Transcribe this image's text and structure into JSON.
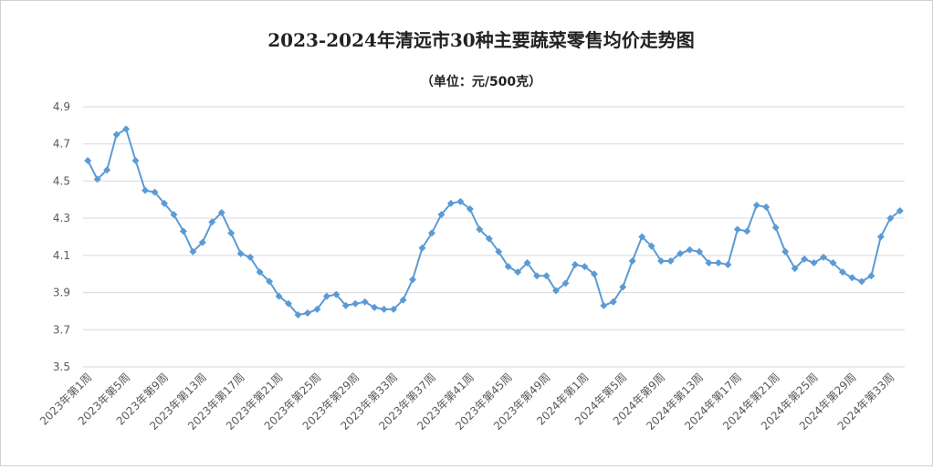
{
  "chart_data": {
    "type": "line",
    "title": "2023-2024年清远市30种主要蔬菜零售均价走势图",
    "subtitle": "（单位：元/500克）",
    "xlabel": "",
    "ylabel": "",
    "ylim": [
      3.5,
      4.9
    ],
    "yticks": [
      "3.5",
      "3.7",
      "3.9",
      "4.1",
      "4.3",
      "4.5",
      "4.7",
      "4.9"
    ],
    "grid": true,
    "legend": "none",
    "color": "#5b9bd5",
    "categories": [
      "2023年第1周",
      "2023年第2周",
      "2023年第3周",
      "2023年第4周",
      "2023年第5周",
      "2023年第6周",
      "2023年第7周",
      "2023年第8周",
      "2023年第9周",
      "2023年第10周",
      "2023年第11周",
      "2023年第12周",
      "2023年第13周",
      "2023年第14周",
      "2023年第15周",
      "2023年第16周",
      "2023年第17周",
      "2023年第18周",
      "2023年第19周",
      "2023年第20周",
      "2023年第21周",
      "2023年第22周",
      "2023年第23周",
      "2023年第24周",
      "2023年第25周",
      "2023年第26周",
      "2023年第27周",
      "2023年第28周",
      "2023年第29周",
      "2023年第30周",
      "2023年第31周",
      "2023年第32周",
      "2023年第33周",
      "2023年第34周",
      "2023年第35周",
      "2023年第36周",
      "2023年第37周",
      "2023年第38周",
      "2023年第39周",
      "2023年第40周",
      "2023年第41周",
      "2023年第42周",
      "2023年第43周",
      "2023年第44周",
      "2023年第45周",
      "2023年第46周",
      "2023年第47周",
      "2023年第48周",
      "2023年第49周",
      "2023年第50周",
      "2023年第51周",
      "2023年第52周",
      "2024年第1周",
      "2024年第2周",
      "2024年第3周",
      "2024年第4周",
      "2024年第5周",
      "2024年第6周",
      "2024年第7周",
      "2024年第8周",
      "2024年第9周",
      "2024年第10周",
      "2024年第11周",
      "2024年第12周",
      "2024年第13周",
      "2024年第14周",
      "2024年第15周",
      "2024年第16周",
      "2024年第17周",
      "2024年第18周",
      "2024年第19周",
      "2024年第20周",
      "2024年第21周",
      "2024年第22周",
      "2024年第23周",
      "2024年第24周",
      "2024年第25周",
      "2024年第26周",
      "2024年第27周",
      "2024年第28周",
      "2024年第29周",
      "2024年第30周",
      "2024年第31周",
      "2024年第32周",
      "2024年第33周",
      "2024年第34周"
    ],
    "tick_labels": [
      "2023年第1周",
      "2023年第5周",
      "2023年第9周",
      "2023年第13周",
      "2023年第17周",
      "2023年第21周",
      "2023年第25周",
      "2023年第29周",
      "2023年第33周",
      "2023年第37周",
      "2023年第41周",
      "2023年第45周",
      "2023年第49周",
      "2024年第1周",
      "2024年第5周",
      "2024年第9周",
      "2024年第13周",
      "2024年第17周",
      "2024年第21周",
      "2024年第25周",
      "2024年第29周",
      "2024年第33周"
    ],
    "values": [
      4.61,
      4.51,
      4.56,
      4.75,
      4.78,
      4.61,
      4.45,
      4.44,
      4.38,
      4.32,
      4.23,
      4.12,
      4.17,
      4.28,
      4.33,
      4.22,
      4.11,
      4.09,
      4.01,
      3.96,
      3.88,
      3.84,
      3.78,
      3.79,
      3.81,
      3.88,
      3.89,
      3.83,
      3.84,
      3.85,
      3.82,
      3.81,
      3.81,
      3.86,
      3.97,
      4.14,
      4.22,
      4.32,
      4.38,
      4.39,
      4.35,
      4.24,
      4.19,
      4.12,
      4.04,
      4.01,
      4.06,
      3.99,
      3.99,
      3.91,
      3.95,
      4.05,
      4.04,
      4.0,
      3.83,
      3.85,
      3.93,
      4.07,
      4.2,
      4.15,
      4.07,
      4.07,
      4.11,
      4.13,
      4.12,
      4.06,
      4.06,
      4.05,
      4.24,
      4.23,
      4.37,
      4.36,
      4.25,
      4.12,
      4.03,
      4.08,
      4.06,
      4.09,
      4.06,
      4.01,
      3.98,
      3.96,
      3.99,
      4.2,
      4.3,
      4.34
    ]
  }
}
